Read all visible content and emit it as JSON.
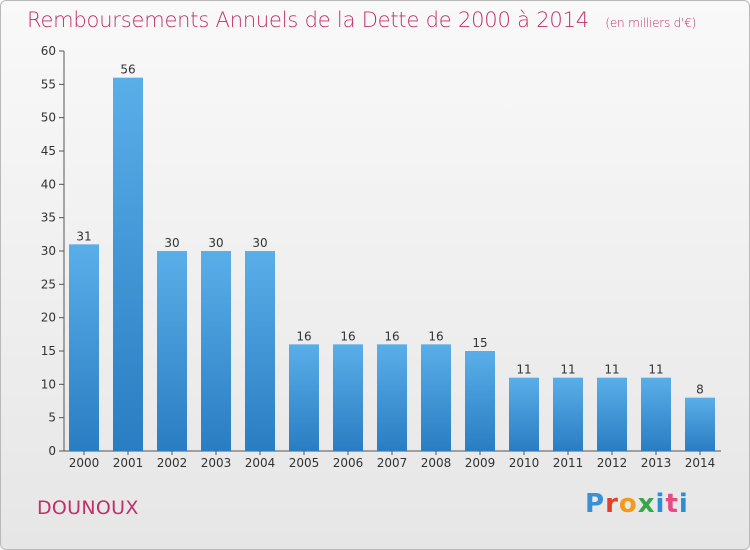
{
  "chart_data": {
    "type": "bar",
    "title": "Remboursements Annuels de la Dette de 2000 à 2014",
    "subtitle": "(en milliers d'€)",
    "categories": [
      "2000",
      "2001",
      "2002",
      "2003",
      "2004",
      "2005",
      "2006",
      "2007",
      "2008",
      "2009",
      "2010",
      "2011",
      "2012",
      "2013",
      "2014"
    ],
    "values": [
      31,
      56,
      30,
      30,
      30,
      16,
      16,
      16,
      16,
      15,
      11,
      11,
      11,
      11,
      8
    ],
    "ylim": [
      0,
      60
    ],
    "yticks": [
      0,
      5,
      10,
      15,
      20,
      25,
      30,
      35,
      40,
      45,
      50,
      55,
      60
    ],
    "xlabel": "",
    "ylabel": "",
    "grid": false,
    "bar_color": "#2b86cf"
  },
  "place_name": "DOUNOUX",
  "brand": {
    "p": "P",
    "r": "r",
    "o": "o",
    "x": "x",
    "i1": "i",
    "t": "t",
    "i2": "i"
  }
}
